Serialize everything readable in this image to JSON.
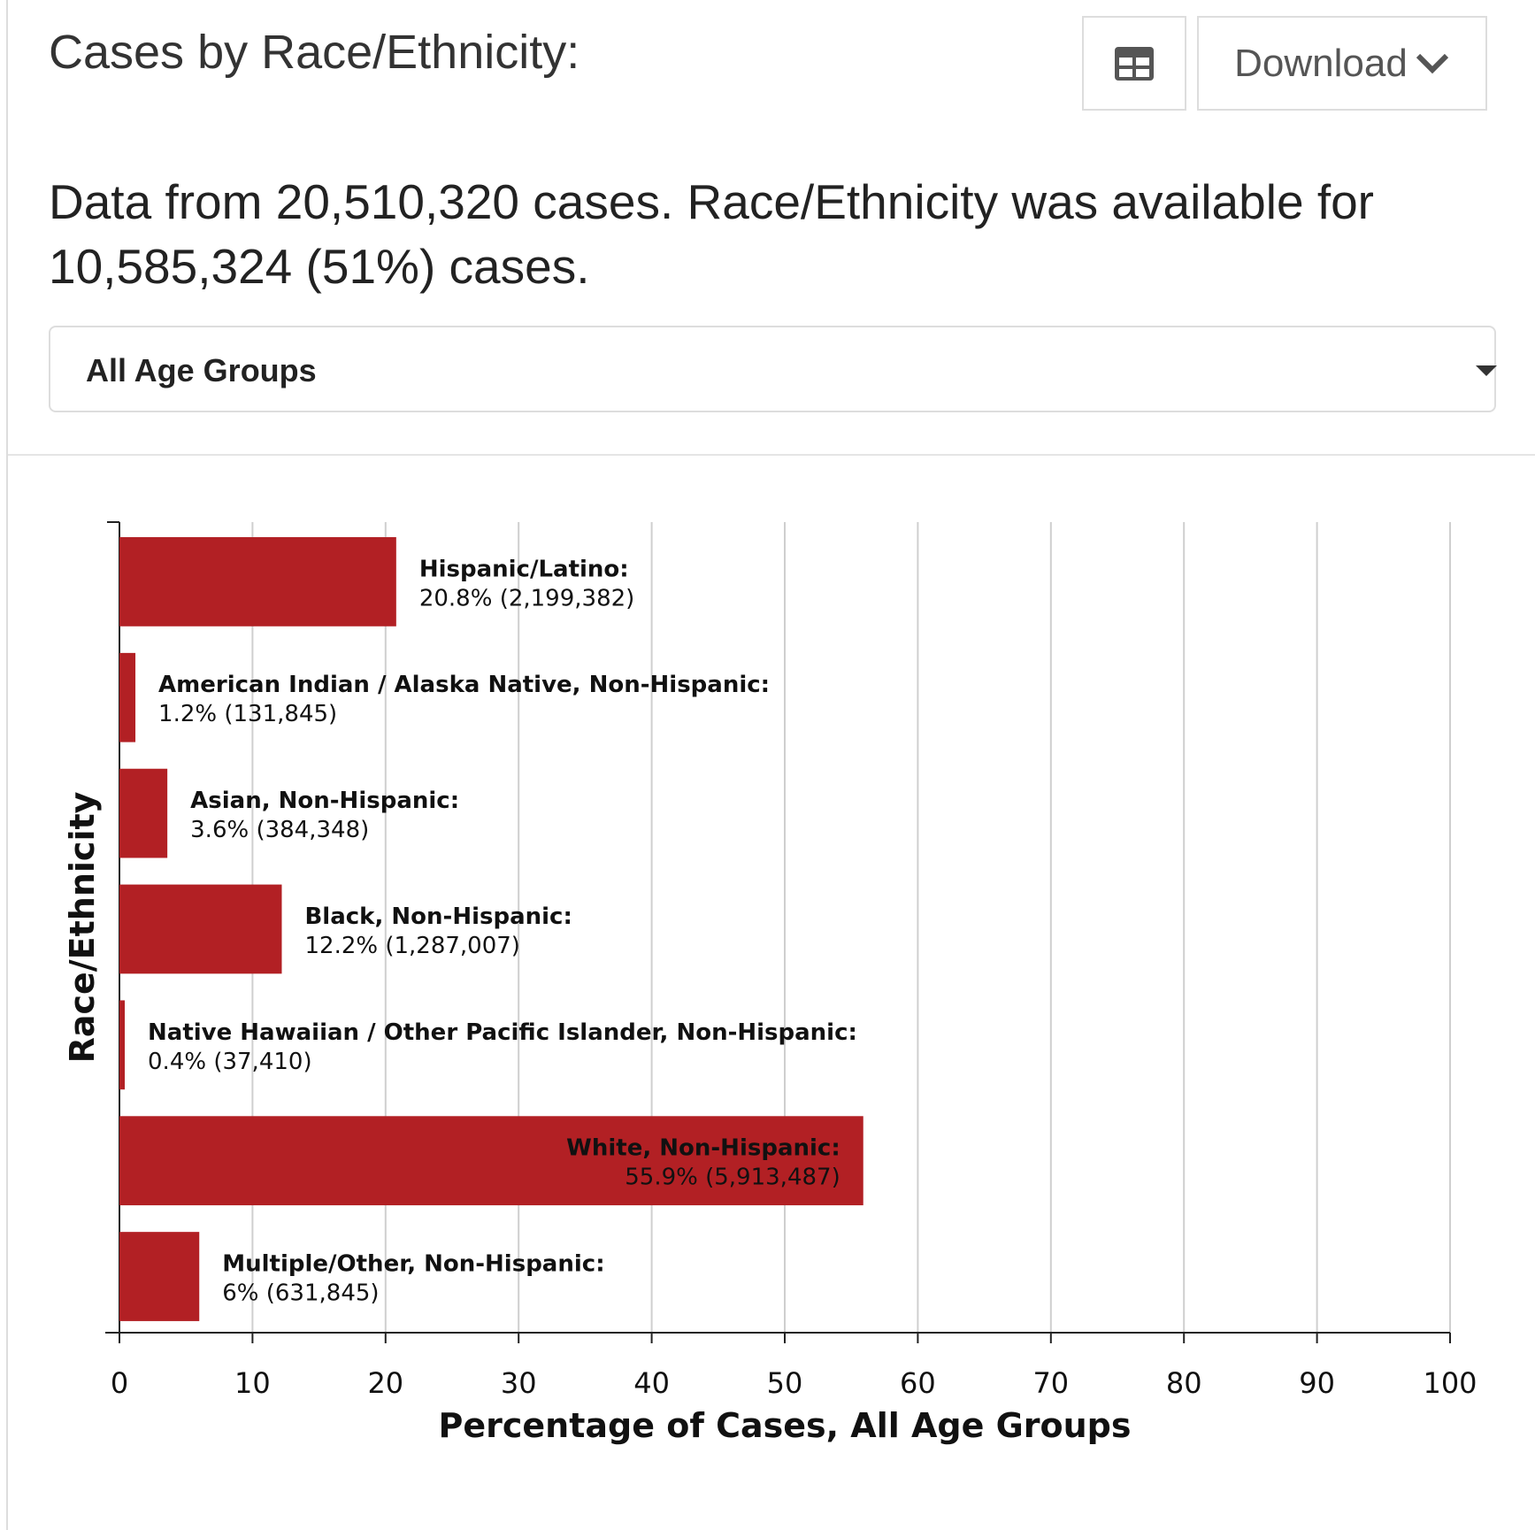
{
  "header": {
    "title": "Cases by Race/Ethnicity:",
    "download": "Download",
    "subtitle": "Data from 20,510,320 cases. Race/Ethnicity was available for 10,585,324 (51%) cases.",
    "dropdown": "All Age Groups"
  },
  "chart_data": {
    "type": "bar",
    "orientation": "horizontal",
    "categories": [
      "Hispanic/Latino:",
      "American Indian / Alaska Native, Non-Hispanic:",
      "Asian, Non-Hispanic:",
      "Black, Non-Hispanic:",
      "Native Hawaiian / Other Pacific Islander, Non-Hispanic:",
      "White, Non-Hispanic:",
      "Multiple/Other, Non-Hispanic:"
    ],
    "values": [
      20.8,
      1.2,
      3.6,
      12.2,
      0.4,
      55.9,
      6
    ],
    "value_labels": [
      "20.8% (2,199,382)",
      "1.2% (131,845)",
      "3.6% (384,348)",
      "12.2% (1,287,007)",
      "0.4% (37,410)",
      "55.9% (5,913,487)",
      "6% (631,845)"
    ],
    "color": "#b22024",
    "xlabel": "Percentage of Cases, All Age Groups",
    "ylabel": "Race/Ethnicity",
    "xlim": [
      0,
      100
    ],
    "xticks": [
      0,
      10,
      20,
      30,
      40,
      50,
      60,
      70,
      80,
      90,
      100
    ],
    "grid": true
  }
}
